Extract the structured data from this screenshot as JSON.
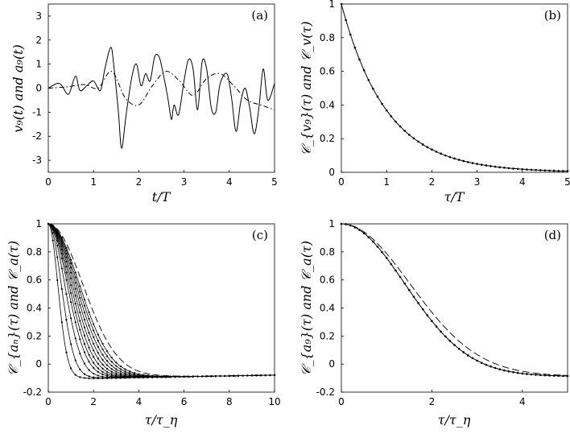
{
  "chart_data": [
    {
      "id": "a",
      "type": "line",
      "panel_label": "(a)",
      "xlabel": "t/T",
      "ylabel": "v₉(t) and a₉(t)",
      "xlim": [
        0,
        5
      ],
      "ylim": [
        -3.5,
        3.5
      ],
      "xticks": [
        "0",
        "1",
        "2",
        "3",
        "4",
        "5"
      ],
      "yticks": [
        "3",
        "2",
        "1",
        "0",
        "-1",
        "-2",
        "-3"
      ],
      "ytick_values": [
        3,
        2,
        1,
        0,
        -1,
        -2,
        -3
      ],
      "series": [
        {
          "name": "a₉(t)",
          "style": "solid",
          "x": [
            0,
            0.2,
            0.3,
            0.45,
            0.6,
            0.7,
            0.85,
            1.0,
            1.15,
            1.25,
            1.38,
            1.45,
            1.55,
            1.62,
            1.72,
            1.85,
            1.95,
            2.05,
            2.15,
            2.25,
            2.35,
            2.45,
            2.55,
            2.65,
            2.72,
            2.78,
            2.88,
            3.0,
            3.1,
            3.2,
            3.3,
            3.4,
            3.5,
            3.6,
            3.7,
            3.8,
            3.95,
            4.05,
            4.15,
            4.25,
            4.35,
            4.45,
            4.55,
            4.65,
            4.75,
            4.85,
            5.0
          ],
          "y": [
            0,
            0.2,
            0.1,
            -0.25,
            0.5,
            -0.1,
            0.1,
            0.3,
            -0.1,
            0.8,
            1.7,
            0.9,
            -1.0,
            -2.5,
            -1.1,
            0.5,
            1.0,
            0.1,
            0.6,
            0.3,
            1.3,
            1.3,
            0.5,
            -0.5,
            -1.3,
            -0.7,
            -1.1,
            0.3,
            1.2,
            0.8,
            -0.9,
            1.1,
            0.8,
            -0.8,
            -1.0,
            0.2,
            0.6,
            -0.4,
            -1.8,
            -0.6,
            0.0,
            -0.8,
            -1.9,
            -0.9,
            0.8,
            -0.5,
            0.2
          ]
        },
        {
          "name": "v₉(t)",
          "style": "dashdot",
          "x": [
            0,
            0.4,
            0.8,
            1.1,
            1.4,
            1.7,
            2.0,
            2.3,
            2.6,
            2.9,
            3.2,
            3.5,
            3.8,
            4.1,
            4.4,
            4.7,
            5.0
          ],
          "y": [
            0,
            0.05,
            0.15,
            0.0,
            0.7,
            -0.4,
            -0.7,
            0.1,
            0.7,
            0.3,
            -0.3,
            0.4,
            0.6,
            0.1,
            -0.5,
            -0.7,
            -0.9
          ]
        }
      ]
    },
    {
      "id": "b",
      "type": "line",
      "panel_label": "(b)",
      "xlabel": "τ/T",
      "ylabel": "𝒞_{v₉}(τ) and 𝒞_v(τ)",
      "xlim": [
        0,
        5
      ],
      "ylim": [
        0,
        1
      ],
      "xticks": [
        "0",
        "1",
        "2",
        "3",
        "4",
        "5"
      ],
      "yticks": [
        "1",
        "0.8",
        "0.6",
        "0.4",
        "0.2",
        "0"
      ],
      "ytick_values": [
        1,
        0.8,
        0.6,
        0.4,
        0.2,
        0
      ],
      "series": [
        {
          "name": "𝒞_{v₉}",
          "style": "solid",
          "model": "exp",
          "decay": 1.0
        },
        {
          "name": "𝒞_v",
          "style": "dots",
          "model": "exp",
          "decay": 1.0
        }
      ]
    },
    {
      "id": "c",
      "type": "line",
      "panel_label": "(c)",
      "xlabel": "τ/τ_η",
      "ylabel": "𝒞_{aₙ}(τ) and 𝒞_a(τ)",
      "xlim": [
        0,
        10
      ],
      "ylim": [
        -0.2,
        1
      ],
      "xticks": [
        "0",
        "2",
        "4",
        "6",
        "8",
        "10"
      ],
      "yticks": [
        "1",
        "0.8",
        "0.6",
        "0.4",
        "0.2",
        "0",
        "-0.2"
      ],
      "ytick_values": [
        1,
        0.8,
        0.6,
        0.4,
        0.2,
        0,
        -0.2
      ],
      "family_scales": [
        0.55,
        0.75,
        0.95,
        1.1,
        1.2,
        1.3,
        1.4,
        1.5,
        1.6,
        1.7,
        1.8
      ],
      "dashed_scale": 2.0,
      "zero_crossings_range": [
        1.5,
        3.0
      ],
      "min_value_range": [
        -0.13,
        -0.07
      ]
    },
    {
      "id": "d",
      "type": "line",
      "panel_label": "(d)",
      "xlabel": "τ/τ_η",
      "ylabel": "𝒞_{a₉}(τ) and 𝒞_a(τ)",
      "xlim": [
        0,
        5
      ],
      "ylim": [
        -0.2,
        1
      ],
      "xticks": [
        "0",
        "2",
        "4"
      ],
      "xtick_values": [
        0,
        2,
        4
      ],
      "yticks": [
        "1",
        "0.8",
        "0.6",
        "0.4",
        "0.2",
        "0",
        "-0.2"
      ],
      "ytick_values": [
        1,
        0.8,
        0.6,
        0.4,
        0.2,
        0,
        -0.2
      ],
      "series": [
        {
          "name": "𝒞_{a₉}",
          "style": "solid+dots",
          "zero_crossing": 2.95,
          "min": -0.12
        },
        {
          "name": "𝒞_a",
          "style": "dashed",
          "zero_crossing": 3.05,
          "min": -0.12
        }
      ]
    }
  ]
}
